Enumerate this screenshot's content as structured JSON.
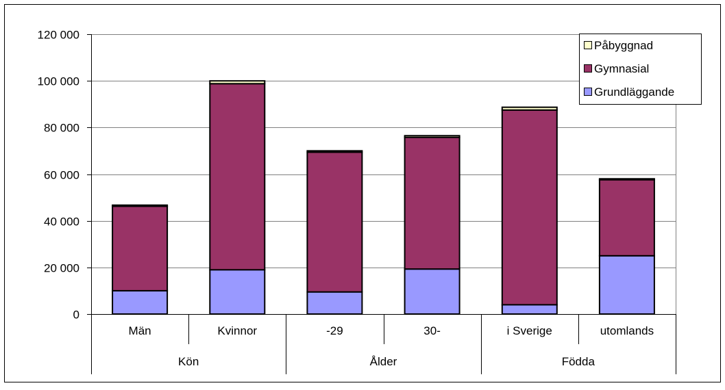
{
  "chart_data": {
    "type": "bar",
    "stacked": true,
    "categories": [
      "Män",
      "Kvinnor",
      "-29",
      "30-",
      "i Sverige",
      "utomlands"
    ],
    "groups": [
      {
        "label": "Kön",
        "categories": [
          "Män",
          "Kvinnor"
        ]
      },
      {
        "label": "Ålder",
        "categories": [
          "-29",
          "30-"
        ]
      },
      {
        "label": "Födda",
        "categories": [
          "i Sverige",
          "utomlands"
        ]
      }
    ],
    "series": [
      {
        "name": "Grundläggande",
        "color": "#9999ff",
        "values": [
          10000,
          19000,
          9500,
          19300,
          4000,
          25000
        ]
      },
      {
        "name": "Gymnasial",
        "color": "#993366",
        "values": [
          36200,
          79800,
          59900,
          56500,
          83500,
          32600
        ]
      },
      {
        "name": "Påbyggnad",
        "color": "#ffffcc",
        "values": [
          500,
          1200,
          600,
          700,
          1200,
          400
        ]
      }
    ],
    "yticks": [
      "0",
      "20 000",
      "40 000",
      "60 000",
      "80 000",
      "100 000",
      "120 000"
    ],
    "ylim": [
      0,
      120000
    ],
    "grid": true,
    "legend_position": "top-right",
    "legend_order": [
      "Påbyggnad",
      "Gymnasial",
      "Grundläggande"
    ]
  }
}
